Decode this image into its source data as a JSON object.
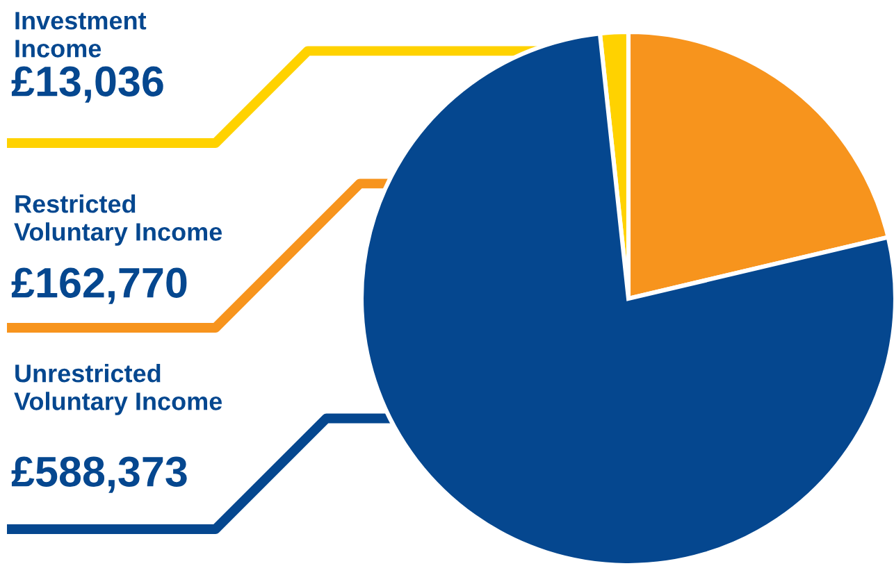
{
  "chart_data": {
    "type": "pie",
    "categories": [
      "Investment\nIncome",
      "Restricted\nVoluntary Income",
      "Unrestricted\nVoluntary Income"
    ],
    "values": [
      13036,
      162770,
      588373
    ],
    "value_labels": [
      "£13,036",
      "£162,770",
      "£588,373"
    ],
    "colors": [
      "#ffd200",
      "#f7941d",
      "#05478f"
    ],
    "legend": false
  }
}
